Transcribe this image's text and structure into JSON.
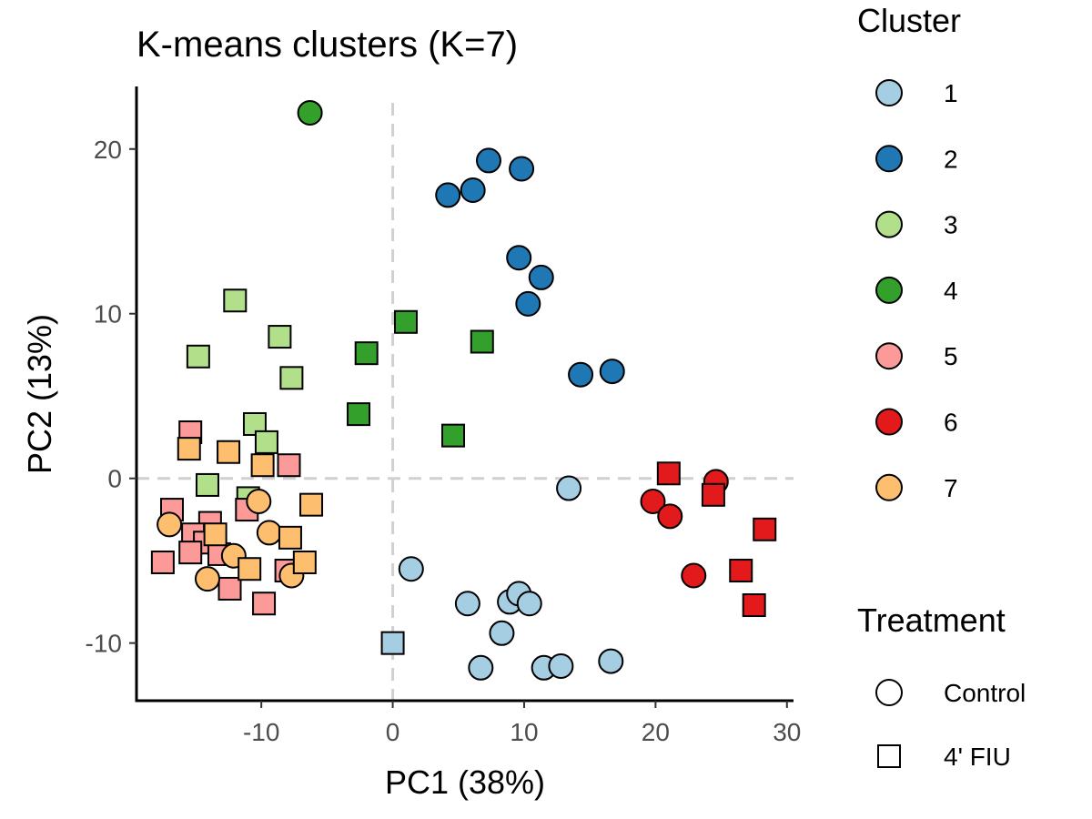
{
  "chart_data": {
    "type": "scatter",
    "title": "K-means clusters (K=7)",
    "xlabel": "PC1 (38%)",
    "ylabel": "PC2 (13%)",
    "xlim": [
      -19.5,
      30.5
    ],
    "ylim": [
      -13.5,
      23.8
    ],
    "xticks": [
      -10,
      0,
      10,
      20,
      30
    ],
    "yticks": [
      -10,
      0,
      10,
      20
    ],
    "reference_lines": {
      "x": 0,
      "y": 0,
      "style": "dashed"
    },
    "grid": false,
    "legend_placement": "right",
    "cluster_legend": {
      "title": "Cluster",
      "items": [
        {
          "label": "1",
          "color": "#a6cee3"
        },
        {
          "label": "2",
          "color": "#1f78b4"
        },
        {
          "label": "3",
          "color": "#b2df8a"
        },
        {
          "label": "4",
          "color": "#33a02c"
        },
        {
          "label": "5",
          "color": "#fb9a99"
        },
        {
          "label": "6",
          "color": "#e31a1c"
        },
        {
          "label": "7",
          "color": "#fdbf6f"
        }
      ]
    },
    "treatment_legend": {
      "title": "Treatment",
      "items": [
        {
          "label": "Control",
          "shape": "circle"
        },
        {
          "label": "4' FIU",
          "shape": "square"
        }
      ]
    },
    "points": [
      {
        "x": 13.4,
        "y": -0.6,
        "cluster": "1",
        "shape": "circle"
      },
      {
        "x": 1.4,
        "y": -5.5,
        "cluster": "1",
        "shape": "circle"
      },
      {
        "x": 5.7,
        "y": -7.6,
        "cluster": "1",
        "shape": "circle"
      },
      {
        "x": 8.9,
        "y": -7.5,
        "cluster": "1",
        "shape": "circle"
      },
      {
        "x": 9.6,
        "y": -7.0,
        "cluster": "1",
        "shape": "circle"
      },
      {
        "x": 10.4,
        "y": -7.6,
        "cluster": "1",
        "shape": "circle"
      },
      {
        "x": 8.3,
        "y": -9.4,
        "cluster": "1",
        "shape": "circle"
      },
      {
        "x": 6.7,
        "y": -11.5,
        "cluster": "1",
        "shape": "circle"
      },
      {
        "x": 11.5,
        "y": -11.5,
        "cluster": "1",
        "shape": "circle"
      },
      {
        "x": 12.8,
        "y": -11.4,
        "cluster": "1",
        "shape": "circle"
      },
      {
        "x": 16.6,
        "y": -11.1,
        "cluster": "1",
        "shape": "circle"
      },
      {
        "x": 0.0,
        "y": -10.0,
        "cluster": "1",
        "shape": "square"
      },
      {
        "x": 7.3,
        "y": 19.3,
        "cluster": "2",
        "shape": "circle"
      },
      {
        "x": 9.8,
        "y": 18.8,
        "cluster": "2",
        "shape": "circle"
      },
      {
        "x": 4.2,
        "y": 17.2,
        "cluster": "2",
        "shape": "circle"
      },
      {
        "x": 6.1,
        "y": 17.5,
        "cluster": "2",
        "shape": "circle"
      },
      {
        "x": 9.6,
        "y": 13.4,
        "cluster": "2",
        "shape": "circle"
      },
      {
        "x": 11.3,
        "y": 12.2,
        "cluster": "2",
        "shape": "circle"
      },
      {
        "x": 10.3,
        "y": 10.6,
        "cluster": "2",
        "shape": "circle"
      },
      {
        "x": 14.3,
        "y": 6.3,
        "cluster": "2",
        "shape": "circle"
      },
      {
        "x": 16.7,
        "y": 6.5,
        "cluster": "2",
        "shape": "circle"
      },
      {
        "x": -12.0,
        "y": 10.8,
        "cluster": "3",
        "shape": "square"
      },
      {
        "x": -8.6,
        "y": 8.6,
        "cluster": "3",
        "shape": "square"
      },
      {
        "x": -14.8,
        "y": 7.4,
        "cluster": "3",
        "shape": "square"
      },
      {
        "x": -7.7,
        "y": 6.1,
        "cluster": "3",
        "shape": "square"
      },
      {
        "x": -10.5,
        "y": 3.3,
        "cluster": "3",
        "shape": "square"
      },
      {
        "x": -9.6,
        "y": 2.2,
        "cluster": "3",
        "shape": "square"
      },
      {
        "x": -14.1,
        "y": -0.4,
        "cluster": "3",
        "shape": "square"
      },
      {
        "x": -11.0,
        "y": -1.2,
        "cluster": "3",
        "shape": "square"
      },
      {
        "x": -6.3,
        "y": 22.2,
        "cluster": "4",
        "shape": "circle"
      },
      {
        "x": 1.0,
        "y": 9.5,
        "cluster": "4",
        "shape": "square"
      },
      {
        "x": -2.0,
        "y": 7.6,
        "cluster": "4",
        "shape": "square"
      },
      {
        "x": 6.8,
        "y": 8.3,
        "cluster": "4",
        "shape": "square"
      },
      {
        "x": -2.6,
        "y": 3.9,
        "cluster": "4",
        "shape": "square"
      },
      {
        "x": 4.6,
        "y": 2.6,
        "cluster": "4",
        "shape": "square"
      },
      {
        "x": -15.4,
        "y": 2.8,
        "cluster": "5",
        "shape": "square"
      },
      {
        "x": -7.9,
        "y": 0.8,
        "cluster": "5",
        "shape": "square"
      },
      {
        "x": -16.8,
        "y": -1.9,
        "cluster": "5",
        "shape": "square"
      },
      {
        "x": -11.1,
        "y": -1.9,
        "cluster": "5",
        "shape": "square"
      },
      {
        "x": -13.9,
        "y": -2.7,
        "cluster": "5",
        "shape": "square"
      },
      {
        "x": -15.2,
        "y": -3.4,
        "cluster": "5",
        "shape": "square"
      },
      {
        "x": -14.3,
        "y": -3.9,
        "cluster": "5",
        "shape": "square"
      },
      {
        "x": -15.4,
        "y": -4.5,
        "cluster": "5",
        "shape": "square"
      },
      {
        "x": -13.2,
        "y": -4.6,
        "cluster": "5",
        "shape": "square"
      },
      {
        "x": -17.5,
        "y": -5.1,
        "cluster": "5",
        "shape": "square"
      },
      {
        "x": -8.1,
        "y": -5.6,
        "cluster": "5",
        "shape": "square"
      },
      {
        "x": -12.4,
        "y": -6.7,
        "cluster": "5",
        "shape": "square"
      },
      {
        "x": -9.8,
        "y": -7.6,
        "cluster": "5",
        "shape": "square"
      },
      {
        "x": 24.6,
        "y": -0.2,
        "cluster": "6",
        "shape": "circle"
      },
      {
        "x": 19.8,
        "y": -1.4,
        "cluster": "6",
        "shape": "circle"
      },
      {
        "x": 21.1,
        "y": -2.3,
        "cluster": "6",
        "shape": "circle"
      },
      {
        "x": 22.9,
        "y": -5.9,
        "cluster": "6",
        "shape": "circle"
      },
      {
        "x": 21.0,
        "y": 0.3,
        "cluster": "6",
        "shape": "square"
      },
      {
        "x": 24.4,
        "y": -1.0,
        "cluster": "6",
        "shape": "square"
      },
      {
        "x": 28.3,
        "y": -3.1,
        "cluster": "6",
        "shape": "square"
      },
      {
        "x": 26.5,
        "y": -5.6,
        "cluster": "6",
        "shape": "square"
      },
      {
        "x": 27.5,
        "y": -7.7,
        "cluster": "6",
        "shape": "square"
      },
      {
        "x": -17.0,
        "y": -2.8,
        "cluster": "7",
        "shape": "circle"
      },
      {
        "x": -10.2,
        "y": -1.4,
        "cluster": "7",
        "shape": "circle"
      },
      {
        "x": -9.4,
        "y": -3.3,
        "cluster": "7",
        "shape": "circle"
      },
      {
        "x": -12.1,
        "y": -4.7,
        "cluster": "7",
        "shape": "circle"
      },
      {
        "x": -14.1,
        "y": -6.1,
        "cluster": "7",
        "shape": "circle"
      },
      {
        "x": -7.7,
        "y": -5.9,
        "cluster": "7",
        "shape": "circle"
      },
      {
        "x": -15.5,
        "y": 1.8,
        "cluster": "7",
        "shape": "square"
      },
      {
        "x": -12.5,
        "y": 1.6,
        "cluster": "7",
        "shape": "square"
      },
      {
        "x": -9.9,
        "y": 0.8,
        "cluster": "7",
        "shape": "square"
      },
      {
        "x": -6.2,
        "y": -1.6,
        "cluster": "7",
        "shape": "square"
      },
      {
        "x": -13.5,
        "y": -3.4,
        "cluster": "7",
        "shape": "square"
      },
      {
        "x": -7.8,
        "y": -3.6,
        "cluster": "7",
        "shape": "square"
      },
      {
        "x": -6.7,
        "y": -5.1,
        "cluster": "7",
        "shape": "square"
      },
      {
        "x": -10.9,
        "y": -5.5,
        "cluster": "7",
        "shape": "square"
      }
    ]
  }
}
